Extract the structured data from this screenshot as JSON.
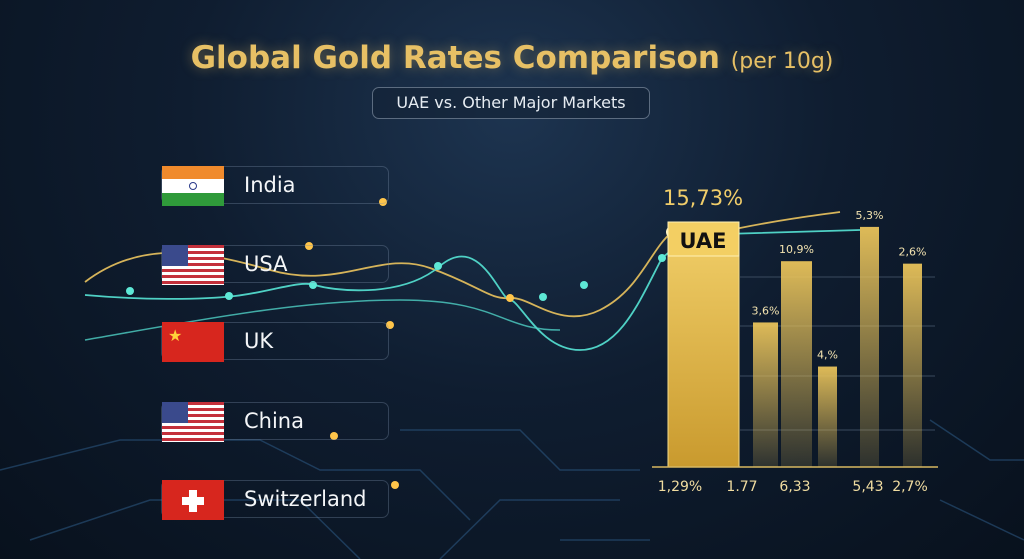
{
  "title": "Global Gold Rates Comparison",
  "title_unit": "(per 10g)",
  "subtitle": "UAE vs. Other Major Markets",
  "countries": [
    {
      "name": "India",
      "flag": "india"
    },
    {
      "name": "USA",
      "flag": "usa"
    },
    {
      "name": "UK",
      "flag": "china"
    },
    {
      "name": "China",
      "flag": "usa"
    },
    {
      "name": "Switzerland",
      "flag": "switzerland"
    }
  ],
  "chart_data": {
    "type": "bar",
    "highlight_label": "UAE",
    "highlight_value": "15,73%",
    "bars": [
      {
        "label": "UAE",
        "top_label": "",
        "height": 100
      },
      {
        "label": "",
        "top_label": "3,6%",
        "height": 59
      },
      {
        "label": "",
        "top_label": "10,9%",
        "height": 84
      },
      {
        "label": "",
        "top_label": "4,%",
        "height": 41
      },
      {
        "label": "",
        "top_label": "5,3%",
        "height": 98
      },
      {
        "label": "",
        "top_label": "2,6%",
        "height": 83
      }
    ],
    "x_labels": [
      "1,29%",
      "1.77",
      "6,33",
      "5,43",
      "2,7%"
    ],
    "ylim": [
      0,
      100
    ],
    "colors": {
      "gold": "#e9c35a",
      "teal": "#4fd1c5"
    }
  }
}
